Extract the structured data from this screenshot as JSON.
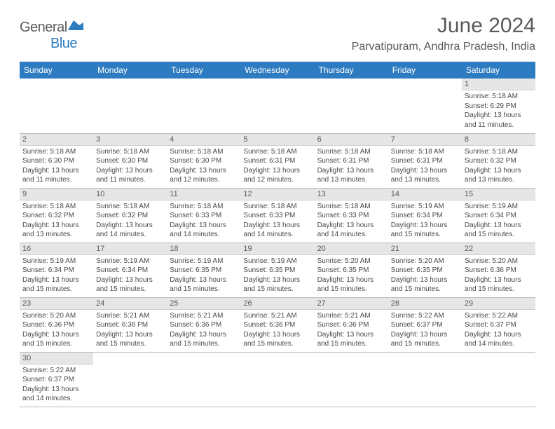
{
  "logo": {
    "general": "General",
    "blue": "Blue"
  },
  "title": "June 2024",
  "location": "Parvatipuram, Andhra Pradesh, India",
  "colors": {
    "header_bg": "#2d7bc0",
    "header_text": "#ffffff",
    "daynum_bg": "#e6e6e6",
    "text": "#5a5a5a",
    "body_text": "#4a4a4a",
    "border": "#bbbbbb"
  },
  "dayNames": [
    "Sunday",
    "Monday",
    "Tuesday",
    "Wednesday",
    "Thursday",
    "Friday",
    "Saturday"
  ],
  "weeks": [
    [
      null,
      null,
      null,
      null,
      null,
      null,
      {
        "d": "1",
        "sr": "5:18 AM",
        "ss": "6:29 PM",
        "dh": "13",
        "dm": "11"
      }
    ],
    [
      {
        "d": "2",
        "sr": "5:18 AM",
        "ss": "6:30 PM",
        "dh": "13",
        "dm": "11"
      },
      {
        "d": "3",
        "sr": "5:18 AM",
        "ss": "6:30 PM",
        "dh": "13",
        "dm": "11"
      },
      {
        "d": "4",
        "sr": "5:18 AM",
        "ss": "6:30 PM",
        "dh": "13",
        "dm": "12"
      },
      {
        "d": "5",
        "sr": "5:18 AM",
        "ss": "6:31 PM",
        "dh": "13",
        "dm": "12"
      },
      {
        "d": "6",
        "sr": "5:18 AM",
        "ss": "6:31 PM",
        "dh": "13",
        "dm": "13"
      },
      {
        "d": "7",
        "sr": "5:18 AM",
        "ss": "6:31 PM",
        "dh": "13",
        "dm": "13"
      },
      {
        "d": "8",
        "sr": "5:18 AM",
        "ss": "6:32 PM",
        "dh": "13",
        "dm": "13"
      }
    ],
    [
      {
        "d": "9",
        "sr": "5:18 AM",
        "ss": "6:32 PM",
        "dh": "13",
        "dm": "13"
      },
      {
        "d": "10",
        "sr": "5:18 AM",
        "ss": "6:32 PM",
        "dh": "13",
        "dm": "14"
      },
      {
        "d": "11",
        "sr": "5:18 AM",
        "ss": "6:33 PM",
        "dh": "13",
        "dm": "14"
      },
      {
        "d": "12",
        "sr": "5:18 AM",
        "ss": "6:33 PM",
        "dh": "13",
        "dm": "14"
      },
      {
        "d": "13",
        "sr": "5:18 AM",
        "ss": "6:33 PM",
        "dh": "13",
        "dm": "14"
      },
      {
        "d": "14",
        "sr": "5:19 AM",
        "ss": "6:34 PM",
        "dh": "13",
        "dm": "15"
      },
      {
        "d": "15",
        "sr": "5:19 AM",
        "ss": "6:34 PM",
        "dh": "13",
        "dm": "15"
      }
    ],
    [
      {
        "d": "16",
        "sr": "5:19 AM",
        "ss": "6:34 PM",
        "dh": "13",
        "dm": "15"
      },
      {
        "d": "17",
        "sr": "5:19 AM",
        "ss": "6:34 PM",
        "dh": "13",
        "dm": "15"
      },
      {
        "d": "18",
        "sr": "5:19 AM",
        "ss": "6:35 PM",
        "dh": "13",
        "dm": "15"
      },
      {
        "d": "19",
        "sr": "5:19 AM",
        "ss": "6:35 PM",
        "dh": "13",
        "dm": "15"
      },
      {
        "d": "20",
        "sr": "5:20 AM",
        "ss": "6:35 PM",
        "dh": "13",
        "dm": "15"
      },
      {
        "d": "21",
        "sr": "5:20 AM",
        "ss": "6:35 PM",
        "dh": "13",
        "dm": "15"
      },
      {
        "d": "22",
        "sr": "5:20 AM",
        "ss": "6:36 PM",
        "dh": "13",
        "dm": "15"
      }
    ],
    [
      {
        "d": "23",
        "sr": "5:20 AM",
        "ss": "6:36 PM",
        "dh": "13",
        "dm": "15"
      },
      {
        "d": "24",
        "sr": "5:21 AM",
        "ss": "6:36 PM",
        "dh": "13",
        "dm": "15"
      },
      {
        "d": "25",
        "sr": "5:21 AM",
        "ss": "6:36 PM",
        "dh": "13",
        "dm": "15"
      },
      {
        "d": "26",
        "sr": "5:21 AM",
        "ss": "6:36 PM",
        "dh": "13",
        "dm": "15"
      },
      {
        "d": "27",
        "sr": "5:21 AM",
        "ss": "6:36 PM",
        "dh": "13",
        "dm": "15"
      },
      {
        "d": "28",
        "sr": "5:22 AM",
        "ss": "6:37 PM",
        "dh": "13",
        "dm": "15"
      },
      {
        "d": "29",
        "sr": "5:22 AM",
        "ss": "6:37 PM",
        "dh": "13",
        "dm": "14"
      }
    ],
    [
      {
        "d": "30",
        "sr": "5:22 AM",
        "ss": "6:37 PM",
        "dh": "13",
        "dm": "14"
      },
      null,
      null,
      null,
      null,
      null,
      null
    ]
  ],
  "labels": {
    "sunrise": "Sunrise: ",
    "sunset": "Sunset: ",
    "daylight_pre": "Daylight: ",
    "daylight_mid": " hours and ",
    "daylight_suf": " minutes."
  }
}
